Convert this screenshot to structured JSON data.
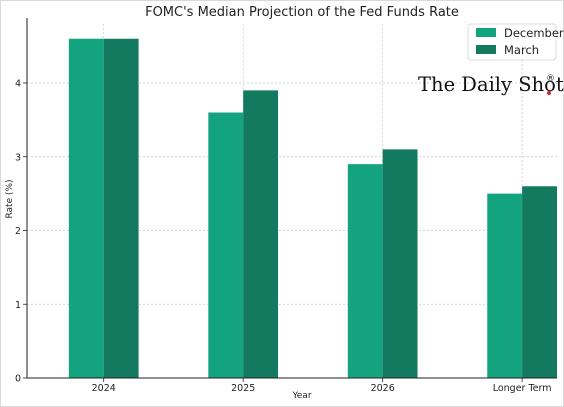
{
  "chart_data": {
    "type": "bar",
    "title": "FOMC's Median Projection of the Fed Funds Rate",
    "xlabel": "Year",
    "ylabel": "Rate (%)",
    "categories": [
      "2024",
      "2025",
      "2026",
      "Longer Term"
    ],
    "series": [
      {
        "name": "December",
        "values": [
          4.6,
          3.6,
          2.9,
          2.5
        ],
        "color": "#13a37e"
      },
      {
        "name": "March",
        "values": [
          4.6,
          3.9,
          3.1,
          2.6
        ],
        "color": "#137a60"
      }
    ],
    "ylim": [
      0,
      4.8
    ],
    "yticks": [
      "0",
      "1",
      "2",
      "3",
      "4"
    ],
    "grid": true,
    "legend_position": "top-right"
  },
  "watermark": {
    "text": "The Daily Shot",
    "mark": "®"
  }
}
